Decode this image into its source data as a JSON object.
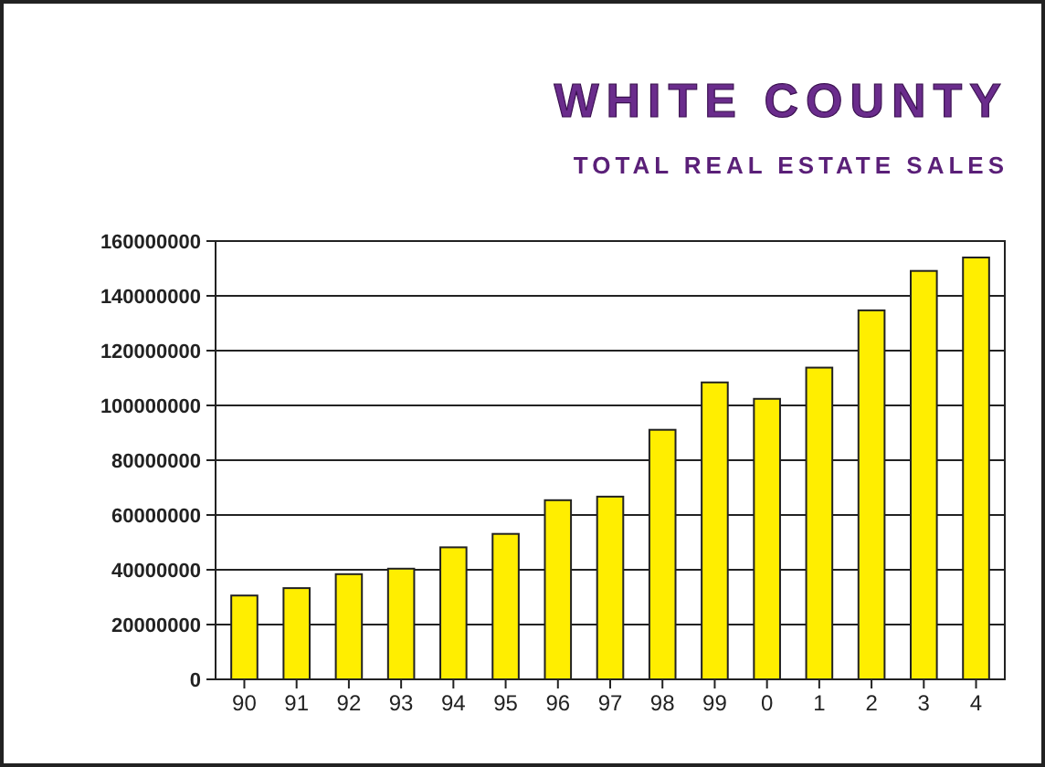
{
  "chart_data": {
    "type": "bar",
    "title": "WHITE COUNTY",
    "subtitle": "TOTAL REAL ESTATE SALES",
    "categories": [
      "90",
      "91",
      "92",
      "93",
      "94",
      "95",
      "96",
      "97",
      "98",
      "99",
      "0",
      "1",
      "2",
      "3",
      "4"
    ],
    "values": [
      30600000,
      33300000,
      38400000,
      40400000,
      48200000,
      53100000,
      65400000,
      66700000,
      91100000,
      108400000,
      102400000,
      113800000,
      134700000,
      149100000,
      154000000
    ],
    "color": "#ffee00",
    "ylim": [
      0,
      160000000
    ],
    "yticks": [
      0,
      20000000,
      40000000,
      60000000,
      80000000,
      100000000,
      120000000,
      140000000,
      160000000
    ],
    "grid": "y"
  }
}
